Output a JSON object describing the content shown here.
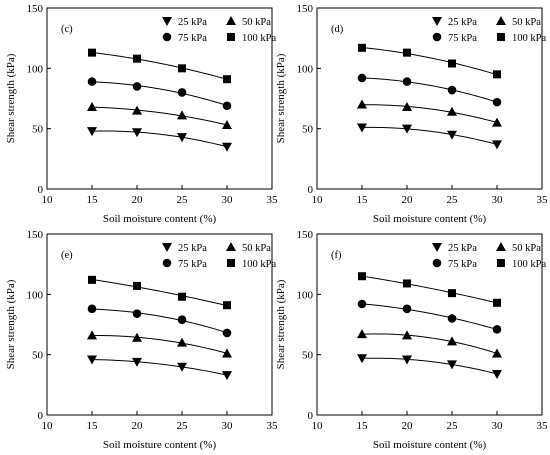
{
  "chart_data": [
    {
      "type": "line",
      "panel_label": "(c)",
      "xlabel": "Soil moisture content (%)",
      "ylabel": "Shear strength (kPa)",
      "xlim": [
        10,
        35
      ],
      "ylim": [
        0,
        150
      ],
      "xticks": [
        10,
        15,
        20,
        25,
        30,
        35
      ],
      "yticks": [
        0,
        50,
        100,
        150
      ],
      "grid": false,
      "legend_position": "top-right",
      "x": [
        15,
        20,
        25,
        30
      ],
      "series": [
        {
          "name": "25 kPa",
          "marker": "triangle-down",
          "values": [
            48,
            47,
            43,
            35
          ]
        },
        {
          "name": "50 kPa",
          "marker": "triangle-up",
          "values": [
            68,
            65,
            61,
            53
          ]
        },
        {
          "name": "75 kPa",
          "marker": "circle",
          "values": [
            89,
            85,
            80,
            69
          ]
        },
        {
          "name": "100 kPa",
          "marker": "square",
          "values": [
            113,
            108,
            100,
            91
          ]
        }
      ]
    },
    {
      "type": "line",
      "panel_label": "(d)",
      "xlabel": "Soil moisture content (%)",
      "ylabel": "Shear strength (kPa)",
      "xlim": [
        10,
        35
      ],
      "ylim": [
        0,
        150
      ],
      "xticks": [
        10,
        15,
        20,
        25,
        30,
        35
      ],
      "yticks": [
        0,
        50,
        100,
        150
      ],
      "grid": false,
      "legend_position": "top-right",
      "x": [
        15,
        20,
        25,
        30
      ],
      "series": [
        {
          "name": "25 kPa",
          "marker": "triangle-down",
          "values": [
            51,
            50,
            45,
            37
          ]
        },
        {
          "name": "50 kPa",
          "marker": "triangle-up",
          "values": [
            70,
            68,
            64,
            55
          ]
        },
        {
          "name": "75 kPa",
          "marker": "circle",
          "values": [
            92,
            89,
            82,
            72
          ]
        },
        {
          "name": "100 kPa",
          "marker": "square",
          "values": [
            117,
            113,
            104,
            95
          ]
        }
      ]
    },
    {
      "type": "line",
      "panel_label": "(e)",
      "xlabel": "Soil moisture content (%)",
      "ylabel": "Shear strength (kPa)",
      "xlim": [
        10,
        35
      ],
      "ylim": [
        0,
        150
      ],
      "xticks": [
        10,
        15,
        20,
        25,
        30,
        35
      ],
      "yticks": [
        0,
        50,
        100,
        150
      ],
      "grid": false,
      "legend_position": "top-right",
      "x": [
        15,
        20,
        25,
        30
      ],
      "series": [
        {
          "name": "25 kPa",
          "marker": "triangle-down",
          "values": [
            46,
            44,
            40,
            33
          ]
        },
        {
          "name": "50 kPa",
          "marker": "triangle-up",
          "values": [
            66,
            64,
            60,
            51
          ]
        },
        {
          "name": "75 kPa",
          "marker": "circle",
          "values": [
            88,
            84,
            79,
            68
          ]
        },
        {
          "name": "100 kPa",
          "marker": "square",
          "values": [
            112,
            107,
            98,
            91
          ]
        }
      ]
    },
    {
      "type": "line",
      "panel_label": "(f)",
      "xlabel": "Soil moisture content (%)",
      "ylabel": "Shear strength (kPa)",
      "xlim": [
        10,
        35
      ],
      "ylim": [
        0,
        150
      ],
      "xticks": [
        10,
        15,
        20,
        25,
        30,
        35
      ],
      "yticks": [
        0,
        50,
        100,
        150
      ],
      "grid": false,
      "legend_position": "top-right",
      "x": [
        15,
        20,
        25,
        30
      ],
      "series": [
        {
          "name": "25 kPa",
          "marker": "triangle-down",
          "values": [
            47,
            46,
            42,
            34
          ]
        },
        {
          "name": "50 kPa",
          "marker": "triangle-up",
          "values": [
            67,
            66,
            61,
            51
          ]
        },
        {
          "name": "75 kPa",
          "marker": "circle",
          "values": [
            92,
            88,
            80,
            71
          ]
        },
        {
          "name": "100 kPa",
          "marker": "square",
          "values": [
            115,
            109,
            101,
            93
          ]
        }
      ]
    }
  ]
}
